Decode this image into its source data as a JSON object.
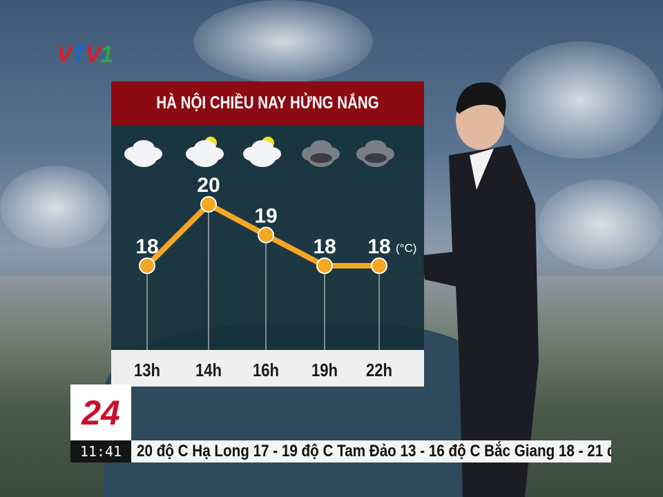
{
  "broadcast": {
    "channel_logo": "VTV1",
    "program_logo": "24",
    "clock": "11:41",
    "ticker": "20 độ C   Hạ Long 17 - 19 độ C   Tam Đảo 13 - 16 độ C   Bắc Giang 18 - 21 đ"
  },
  "colors": {
    "title_bar": "#8c0a12",
    "plot_bg": "#14303a",
    "line": "#f5a623",
    "label_bar": "#efefef"
  },
  "chart_data": {
    "type": "line",
    "title": "HÀ NỘI CHIỀU NAY HỬNG NẮNG",
    "unit": "(°C)",
    "categories": [
      "13h",
      "14h",
      "16h",
      "19h",
      "22h"
    ],
    "values": [
      18,
      20,
      19,
      18,
      18
    ],
    "icons": [
      "cloudy-icon",
      "partly-sunny-icon",
      "partly-sunny-icon",
      "overcast-icon",
      "overcast-icon"
    ],
    "grid": false
  }
}
